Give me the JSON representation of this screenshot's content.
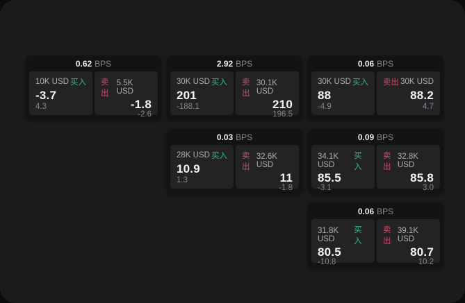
{
  "page": {
    "background_outer": "#0c0c0c",
    "background_panel": "#1b1b1d"
  },
  "labels": {
    "bps_unit": "BPS",
    "buy": "买入",
    "sell": "卖出"
  },
  "colors": {
    "buy_green": "#2ebd85",
    "sell_red": "#d04a64",
    "card_bg": "#131314",
    "tile_bg": "#232325",
    "value_white": "#f4f4f5",
    "muted_gray": "#85858a"
  },
  "cards": [
    {
      "bps": "0.62",
      "buy": {
        "amount": "10K USD",
        "value": "-3.7",
        "sub": "4.3"
      },
      "sell": {
        "amount": "5.5K USD",
        "value": "-1.8",
        "sub": "-2.6"
      }
    },
    {
      "bps": "2.92",
      "buy": {
        "amount": "30K USD",
        "value": "201",
        "sub": "-188.1"
      },
      "sell": {
        "amount": "30.1K USD",
        "value": "210",
        "sub": "196.5"
      }
    },
    {
      "bps": "0.06",
      "buy": {
        "amount": "30K USD",
        "value": "88",
        "sub": "-4.9"
      },
      "sell": {
        "amount": "30K USD",
        "value": "88.2",
        "sub": "4.7"
      }
    },
    {
      "bps": "0.03",
      "buy": {
        "amount": "28K USD",
        "value": "10.9",
        "sub": "1.3"
      },
      "sell": {
        "amount": "32.6K USD",
        "value": "11",
        "sub": "-1.8"
      }
    },
    {
      "bps": "0.09",
      "buy": {
        "amount": "34.1K USD",
        "value": "85.5",
        "sub": "-3.1"
      },
      "sell": {
        "amount": "32.8K USD",
        "value": "85.8",
        "sub": "3.0"
      }
    },
    {
      "bps": "0.06",
      "buy": {
        "amount": "31.8K USD",
        "value": "80.5",
        "sub": "-10.8"
      },
      "sell": {
        "amount": "39.1K USD",
        "value": "80.7",
        "sub": "10.2"
      }
    }
  ]
}
